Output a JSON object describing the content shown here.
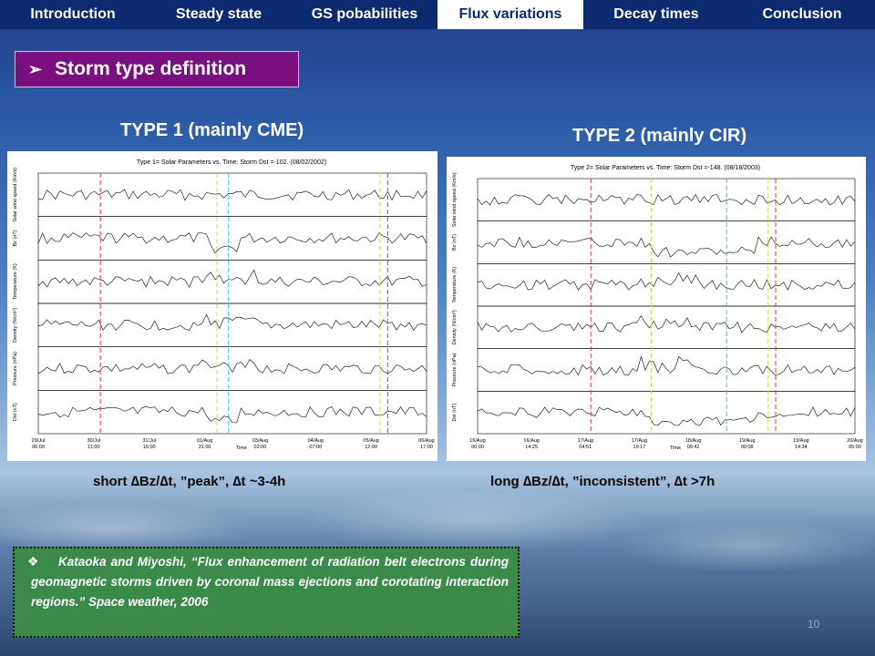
{
  "nav": {
    "tabs": [
      {
        "label": "Introduction",
        "active": false
      },
      {
        "label": "Steady state",
        "active": false
      },
      {
        "label": "GS pobabilities",
        "active": false
      },
      {
        "label": "Flux variations",
        "active": true
      },
      {
        "label": "Decay times",
        "active": false
      },
      {
        "label": "Conclusion",
        "active": false
      }
    ]
  },
  "section": {
    "bullet": "➢",
    "title": "Storm type definition"
  },
  "type1": {
    "heading": "TYPE 1 (mainly CME)",
    "plot_title": "Type 1= Solar Parameters vs. Time: Storm Dst =-102. (08/02/2002)",
    "ylabels": [
      "Solar wind speed (Km/s)",
      "Bz (nT)",
      "Temperature (K)",
      "Density (N/cm³)",
      "Pressure (nPa)",
      "Dst (nT)"
    ],
    "xticks": [
      "29/Jul 06:00",
      "30/Jul 11:00",
      "31/Jul 16:00",
      "01/Aug 21:00",
      "03/Aug 02:00",
      "04/Aug 07:00",
      "05/Aug 12:00",
      "06/Aug 17:00"
    ],
    "xlabel": "Time",
    "caption": "short ∆Bz/∆t, ”peak”, ∆t ~3-4h"
  },
  "type2": {
    "heading": "TYPE 2 (mainly CIR)",
    "plot_title": "Type 2= Solar Parameters vs. Time: Storm Dst =-148. (08/18/2003)",
    "ylabels": [
      "Solar wind speed (Km/s)",
      "Bz (nT)",
      "Temperature (K)",
      "Density (N/cm³)",
      "Pressure (nPa)",
      "Dst (nT)"
    ],
    "xticks": [
      "16/Aug 00:00",
      "16/Aug 14:25",
      "17/Aug 04:51",
      "17/Aug 19:17",
      "18/Aug 09:42",
      "19/Aug 00:08",
      "19/Aug 14:34",
      "20/Aug 05:00"
    ],
    "xlabel": "Time",
    "caption": "long ∆Bz/∆t, ”inconsistent”, ∆t >7h"
  },
  "reference": {
    "bullet": "❖",
    "text": "Kataoka and Miyoshi, “Flux enhancement of radiation belt electrons during geomagnetic storms driven by coronal mass ejections and corotating interaction regions.” Space weather, 2006"
  },
  "page_number": "10"
}
